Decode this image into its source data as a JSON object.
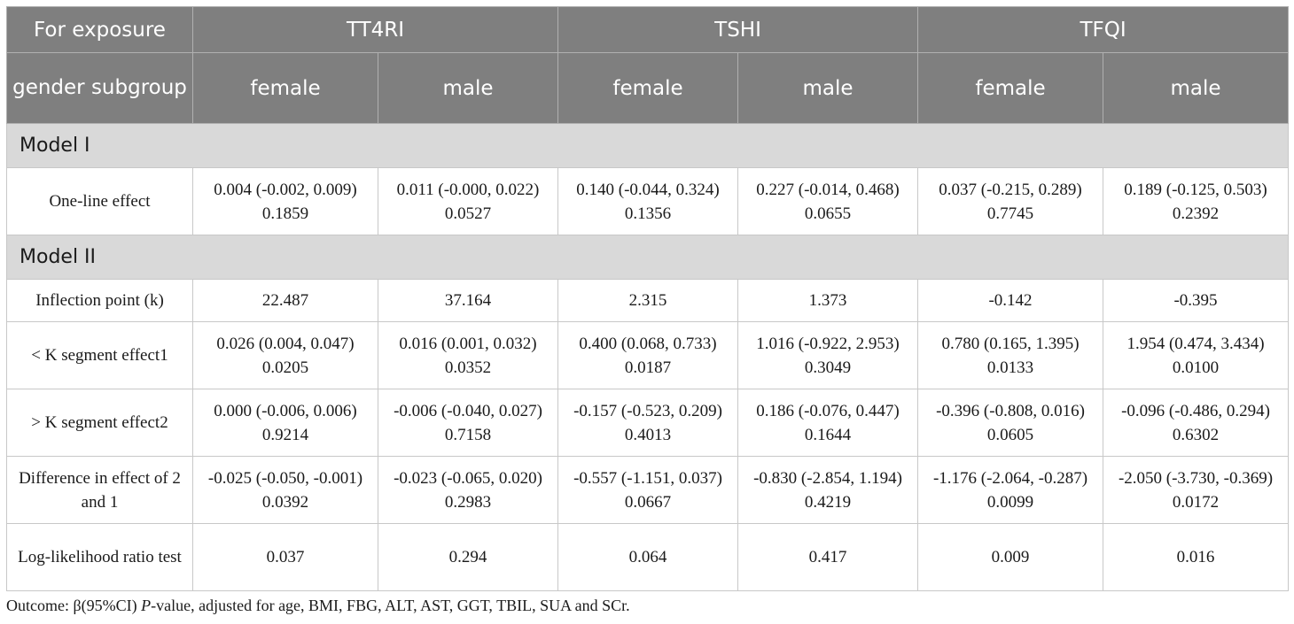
{
  "header": {
    "exposure_label": "For exposure",
    "subgroup_label": "gender subgroup",
    "groups": [
      "TT4RI",
      "TSHI",
      "TFQI"
    ],
    "sub": [
      "female",
      "male",
      "female",
      "male",
      "female",
      "male"
    ]
  },
  "model1": {
    "title": "Model I",
    "rows": [
      {
        "label": "One-line effect",
        "cells": [
          "0.004 (-0.002, 0.009) 0.1859",
          "0.011 (-0.000, 0.022) 0.0527",
          "0.140 (-0.044, 0.324) 0.1356",
          "0.227 (-0.014, 0.468) 0.0655",
          "0.037 (-0.215, 0.289) 0.7745",
          "0.189 (-0.125, 0.503) 0.2392"
        ]
      }
    ]
  },
  "model2": {
    "title": "Model II",
    "rows": [
      {
        "label": "Inflection point (k)",
        "cells": [
          "22.487",
          "37.164",
          "2.315",
          "1.373",
          "-0.142",
          "-0.395"
        ]
      },
      {
        "label": "< K segment effect1",
        "cells": [
          "0.026 (0.004, 0.047) 0.0205",
          "0.016 (0.001, 0.032) 0.0352",
          "0.400 (0.068, 0.733) 0.0187",
          "1.016 (-0.922, 2.953) 0.3049",
          "0.780 (0.165, 1.395) 0.0133",
          "1.954 (0.474, 3.434) 0.0100"
        ]
      },
      {
        "label": "> K segment effect2",
        "cells": [
          "0.000 (-0.006, 0.006) 0.9214",
          "-0.006 (-0.040, 0.027) 0.7158",
          "-0.157 (-0.523, 0.209) 0.4013",
          "0.186 (-0.076, 0.447) 0.1644",
          "-0.396 (-0.808, 0.016) 0.0605",
          "-0.096 (-0.486, 0.294) 0.6302"
        ]
      },
      {
        "label": "Difference in effect of 2 and 1",
        "cells": [
          "-0.025 (-0.050, -0.001) 0.0392",
          "-0.023 (-0.065, 0.020) 0.2983",
          "-0.557 (-1.151, 0.037) 0.0667",
          "-0.830 (-2.854, 1.194) 0.4219",
          "-1.176 (-2.064, -0.287) 0.0099",
          "-2.050 (-3.730, -0.369) 0.0172"
        ]
      },
      {
        "label": "Log-likelihood ratio test",
        "cells": [
          "0.037",
          "0.294",
          "0.064",
          "0.417",
          "0.009",
          "0.016"
        ]
      }
    ]
  },
  "footnote": {
    "prefix": "Outcome: β(95%CI) ",
    "pvalue": "P",
    "suffix": "-value, adjusted for age, BMI, FBG, ALT, AST, GGT, TBIL, SUA and SCr."
  }
}
